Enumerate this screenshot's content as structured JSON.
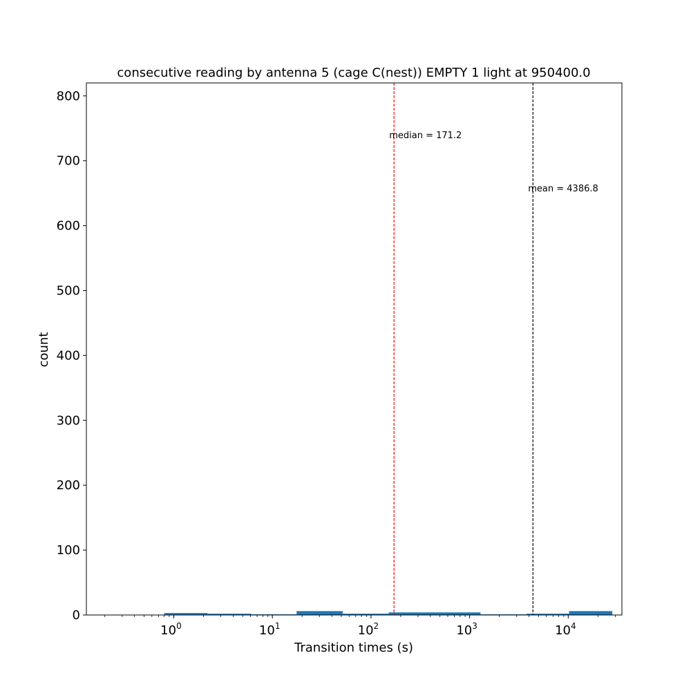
{
  "chart_data": {
    "type": "bar",
    "title": "consecutive reading by antenna 5 (cage C(nest)) EMPTY 1 light at 950400.0",
    "xlabel": "Transition times (s)",
    "ylabel": "count",
    "x_scale": "log",
    "xlim": [
      0.13,
      35000
    ],
    "ylim": [
      0,
      820
    ],
    "yticks": [
      0,
      100,
      200,
      300,
      400,
      500,
      600,
      700,
      800
    ],
    "xticks": [
      {
        "base": "10",
        "exp": "0",
        "value": 1
      },
      {
        "base": "10",
        "exp": "1",
        "value": 10
      },
      {
        "base": "10",
        "exp": "2",
        "value": 100
      },
      {
        "base": "10",
        "exp": "3",
        "value": 1000
      },
      {
        "base": "10",
        "exp": "4",
        "value": 10000
      }
    ],
    "bin_edges": [
      0.8,
      2.2,
      6.1,
      17.6,
      51.6,
      151,
      442,
      1290,
      3770,
      10200,
      28000
    ],
    "counts": [
      3,
      2,
      1,
      6,
      2,
      4,
      4,
      1,
      2,
      6
    ],
    "bar_color": "#1f77b4",
    "annotations": [
      {
        "label": "median = 171.2",
        "value": 171.2,
        "color": "#ff0000",
        "label_y": 740
      },
      {
        "label": "mean = 4386.8",
        "value": 4386.8,
        "color": "#000000",
        "label_y": 658
      }
    ]
  }
}
